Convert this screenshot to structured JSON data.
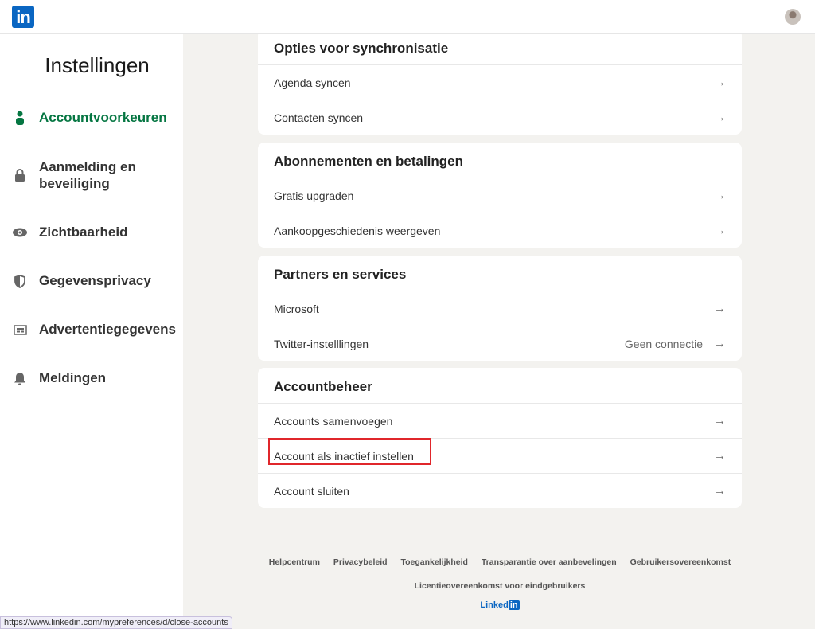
{
  "header": {
    "logo": "in",
    "avatar": "profile-avatar"
  },
  "sidebar": {
    "title": "Instellingen",
    "items": [
      {
        "label": "Accountvoorkeuren",
        "icon": "person-icon",
        "active": true
      },
      {
        "label": "Aanmelding en beveiliging",
        "icon": "lock-icon"
      },
      {
        "label": "Zichtbaarheid",
        "icon": "eye-icon"
      },
      {
        "label": "Gegevensprivacy",
        "icon": "shield-icon"
      },
      {
        "label": "Advertentiegegevens",
        "icon": "newspaper-icon"
      },
      {
        "label": "Meldingen",
        "icon": "bell-icon"
      }
    ]
  },
  "cards": [
    {
      "title": "Opties voor synchronisatie",
      "rows": [
        {
          "label": "Agenda syncen"
        },
        {
          "label": "Contacten syncen"
        }
      ]
    },
    {
      "title": "Abonnementen en betalingen",
      "rows": [
        {
          "label": "Gratis upgraden"
        },
        {
          "label": "Aankoopgeschiedenis weergeven"
        }
      ]
    },
    {
      "title": "Partners en services",
      "rows": [
        {
          "label": "Microsoft"
        },
        {
          "label": "Twitter-instelllingen",
          "value": "Geen connectie"
        }
      ]
    },
    {
      "title": "Accountbeheer",
      "rows": [
        {
          "label": "Accounts samenvoegen"
        },
        {
          "label": "Account als inactief instellen",
          "highlighted": true
        },
        {
          "label": "Account sluiten"
        }
      ]
    }
  ],
  "arrow": "→",
  "footer": {
    "links": [
      "Helpcentrum",
      "Privacybeleid",
      "Toegankelijkheid",
      "Transparantie over aanbevelingen",
      "Gebruikersovereenkomst"
    ],
    "link2": "Licentieovereenkomst voor eindgebruikers",
    "brand": "Linked",
    "brand_in": "in"
  },
  "status_url": "https://www.linkedin.com/mypreferences/d/close-accounts",
  "colors": {
    "accent": "#057642",
    "brand": "#0a66c2",
    "highlight": "#e0262b",
    "background": "#f3f2ef"
  }
}
